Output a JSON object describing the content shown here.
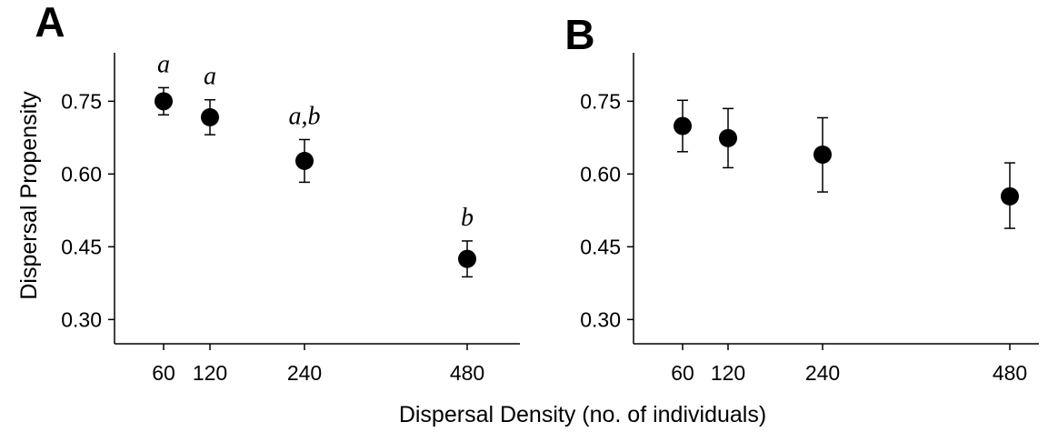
{
  "figure": {
    "xlabel": "Dispersal Density (no. of individuals)",
    "ylabel": "Dispersal Propensity"
  },
  "chart_data": [
    {
      "type": "scatter",
      "panel": "A",
      "title": "",
      "xlabel": "Dispersal Density (no. of individuals)",
      "ylabel": "Dispersal Propensity",
      "x": [
        60,
        120,
        240,
        480
      ],
      "y": [
        0.75,
        0.717,
        0.627,
        0.425
      ],
      "yerr_upper": [
        0.778,
        0.753,
        0.671,
        0.462
      ],
      "yerr_lower": [
        0.722,
        0.681,
        0.583,
        0.388
      ],
      "annotations": [
        "a",
        "a",
        "a,b",
        "b"
      ],
      "xticks": [
        "60",
        "120",
        "240",
        "480"
      ],
      "yticks": [
        "0.30",
        "0.45",
        "0.60",
        "0.75"
      ],
      "xlim": [
        0,
        530
      ],
      "ylim": [
        0.25,
        0.85
      ],
      "grid": false,
      "marker_color": "#000000"
    },
    {
      "type": "scatter",
      "panel": "B",
      "title": "",
      "xlabel": "Dispersal Density (no. of individuals)",
      "ylabel": "",
      "x": [
        60,
        120,
        240,
        480
      ],
      "y": [
        0.699,
        0.674,
        0.64,
        0.554
      ],
      "yerr_upper": [
        0.752,
        0.735,
        0.716,
        0.623
      ],
      "yerr_lower": [
        0.646,
        0.613,
        0.563,
        0.488
      ],
      "annotations": [],
      "xticks": [
        "60",
        "120",
        "240",
        "480"
      ],
      "yticks": [
        "0.30",
        "0.45",
        "0.60",
        "0.75"
      ],
      "xlim": [
        0,
        530
      ],
      "ylim": [
        0.25,
        0.85
      ],
      "grid": false,
      "marker_color": "#000000"
    }
  ]
}
